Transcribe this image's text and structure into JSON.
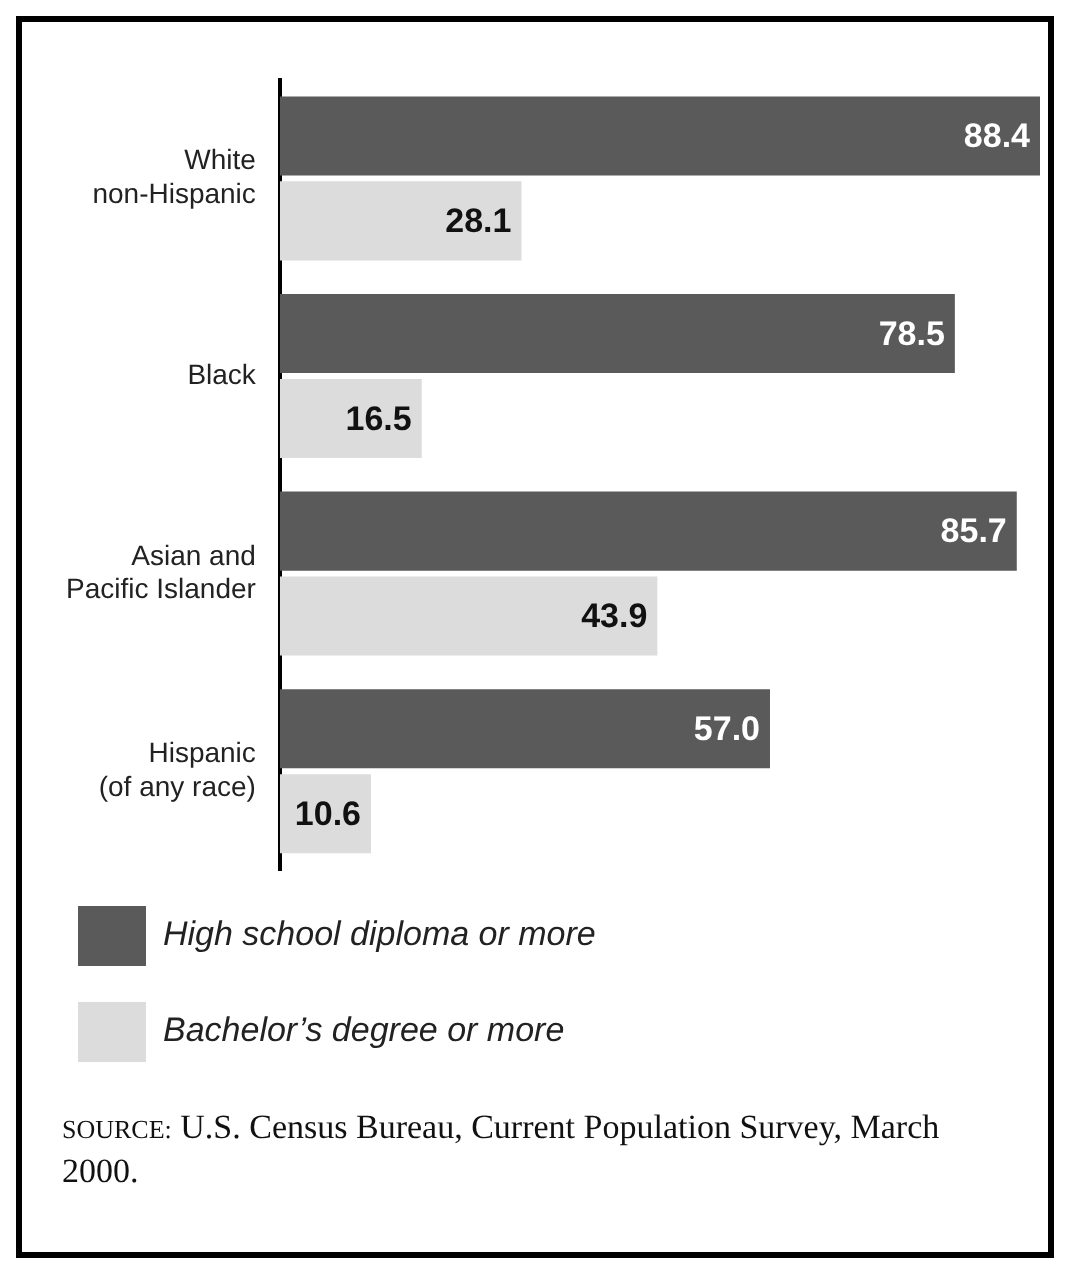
{
  "chart_data": {
    "type": "bar",
    "orientation": "horizontal",
    "categories": [
      "White non-Hispanic",
      "Black",
      "Asian and Pacific Islander",
      "Hispanic (of any race)"
    ],
    "series": [
      {
        "name": "High school diploma or more",
        "color": "#5a5a5a",
        "values": [
          88.4,
          78.5,
          85.7,
          57.0
        ],
        "value_labels": [
          "88.4",
          "78.5",
          "85.7",
          "57.0"
        ]
      },
      {
        "name": "Bachelor’s degree or more",
        "color": "#dcdcdc",
        "values": [
          28.1,
          16.5,
          43.9,
          10.6
        ],
        "value_labels": [
          "28.1",
          "16.5",
          "43.9",
          "10.6"
        ]
      }
    ],
    "grid": false,
    "legend": "bottom",
    "annotations": [
      "SOURCE: U.S. Census Bureau, Current Population Survey, March 2000."
    ]
  }
}
